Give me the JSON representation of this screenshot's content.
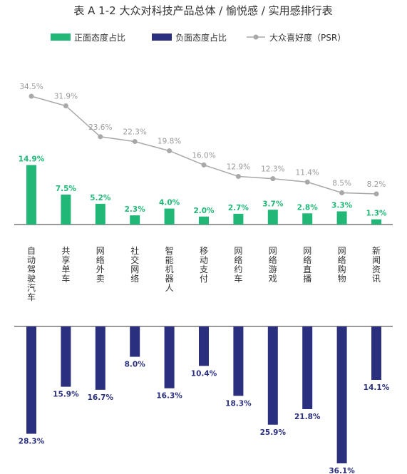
{
  "chart_data": {
    "type": "bar",
    "title": "表 A 1-2 大众对科技产品总体 / 愉悦感 / 实用感排行表",
    "categories": [
      "自动驾驶汽车",
      "共享单车",
      "网络外卖",
      "社交网络",
      "智能机器人",
      "移动支付",
      "网络约车",
      "网络游戏",
      "网络直播",
      "网络购物",
      "新闻资讯"
    ],
    "series": [
      {
        "name": "正面态度占比",
        "type": "bar",
        "color": "#21b877",
        "values": [
          14.9,
          7.5,
          5.2,
          2.3,
          4.0,
          2.0,
          2.7,
          3.7,
          2.8,
          3.3,
          1.3
        ]
      },
      {
        "name": "负面态度占比",
        "type": "bar",
        "color": "#2a2f7e",
        "values": [
          28.3,
          15.9,
          16.7,
          8.0,
          16.3,
          10.4,
          18.3,
          25.9,
          21.8,
          36.1,
          14.1
        ]
      },
      {
        "name": "大众喜好度（PSR）",
        "type": "line",
        "color": "#a8a8a8",
        "values": [
          34.5,
          31.9,
          23.6,
          22.3,
          19.8,
          16.0,
          12.9,
          12.3,
          11.4,
          8.5,
          8.2
        ]
      }
    ],
    "legend_position": "top",
    "grid": false
  }
}
